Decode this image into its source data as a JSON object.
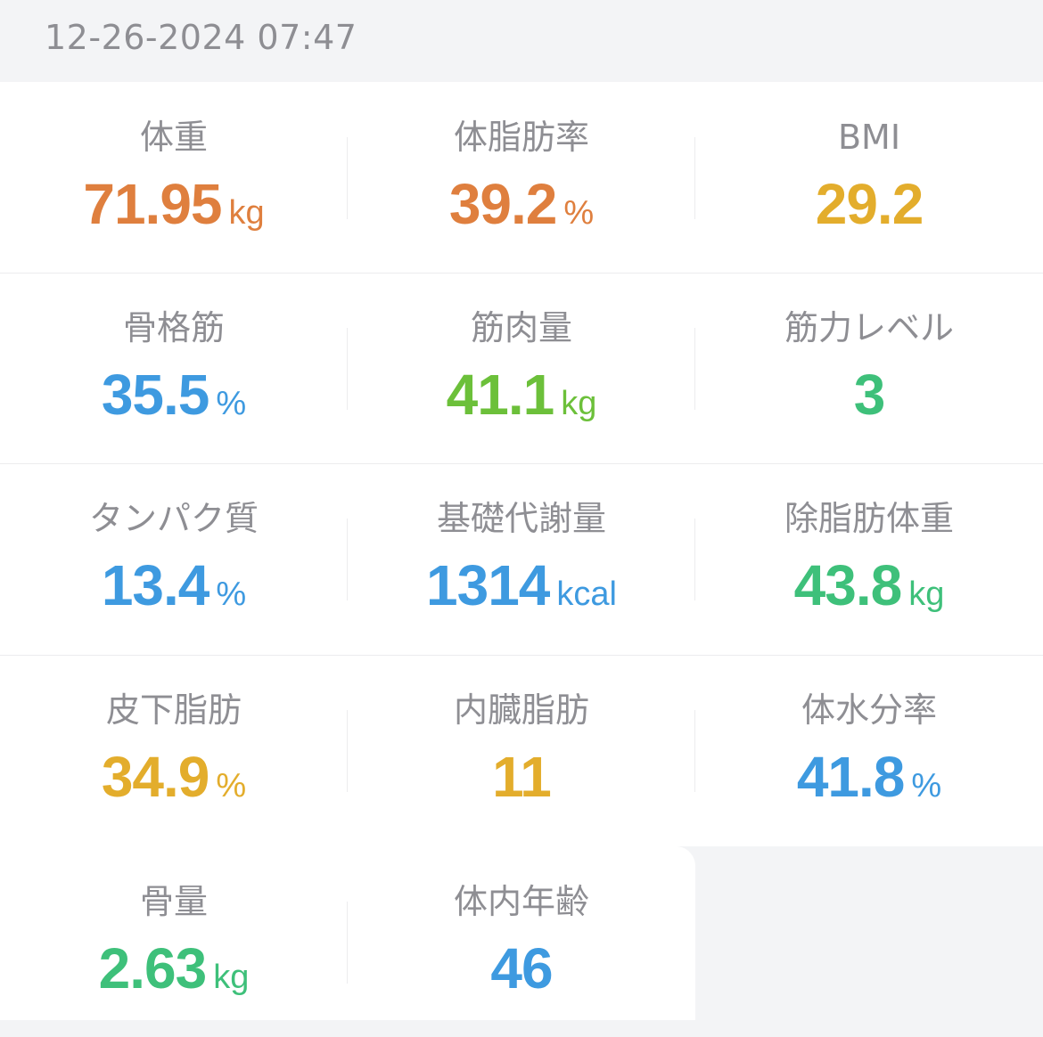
{
  "header": {
    "timestamp": "12-26-2024 07:47"
  },
  "colors": {
    "orange": "#df7f3e",
    "gold": "#e3ad2c",
    "blue": "#3e9ae0",
    "light_green": "#6cc03a",
    "green": "#3ec07a",
    "label_gray": "#8e8e93"
  },
  "metrics": {
    "weight": {
      "label": "体重",
      "value": "71.95",
      "unit": "kg",
      "color": "orange"
    },
    "body_fat": {
      "label": "体脂肪率",
      "value": "39.2",
      "unit": "%",
      "color": "orange"
    },
    "bmi": {
      "label": "BMI",
      "value": "29.2",
      "unit": "",
      "color": "gold"
    },
    "skeletal_muscle": {
      "label": "骨格筋",
      "value": "35.5",
      "unit": "%",
      "color": "blue"
    },
    "muscle_mass": {
      "label": "筋肉量",
      "value": "41.1",
      "unit": "kg",
      "color": "light_green"
    },
    "muscle_level": {
      "label": "筋力レベル",
      "value": "3",
      "unit": "",
      "color": "green"
    },
    "protein": {
      "label": "タンパク質",
      "value": "13.4",
      "unit": "%",
      "color": "blue"
    },
    "bmr": {
      "label": "基礎代謝量",
      "value": "1314",
      "unit": "kcal",
      "color": "blue"
    },
    "lean_mass": {
      "label": "除脂肪体重",
      "value": "43.8",
      "unit": "kg",
      "color": "green"
    },
    "subcutaneous_fat": {
      "label": "皮下脂肪",
      "value": "34.9",
      "unit": "%",
      "color": "gold"
    },
    "visceral_fat": {
      "label": "内臓脂肪",
      "value": "11",
      "unit": "",
      "color": "gold"
    },
    "body_water": {
      "label": "体水分率",
      "value": "41.8",
      "unit": "%",
      "color": "blue"
    },
    "bone_mass": {
      "label": "骨量",
      "value": "2.63",
      "unit": "kg",
      "color": "green"
    },
    "body_age": {
      "label": "体内年齢",
      "value": "46",
      "unit": "",
      "color": "blue"
    }
  }
}
